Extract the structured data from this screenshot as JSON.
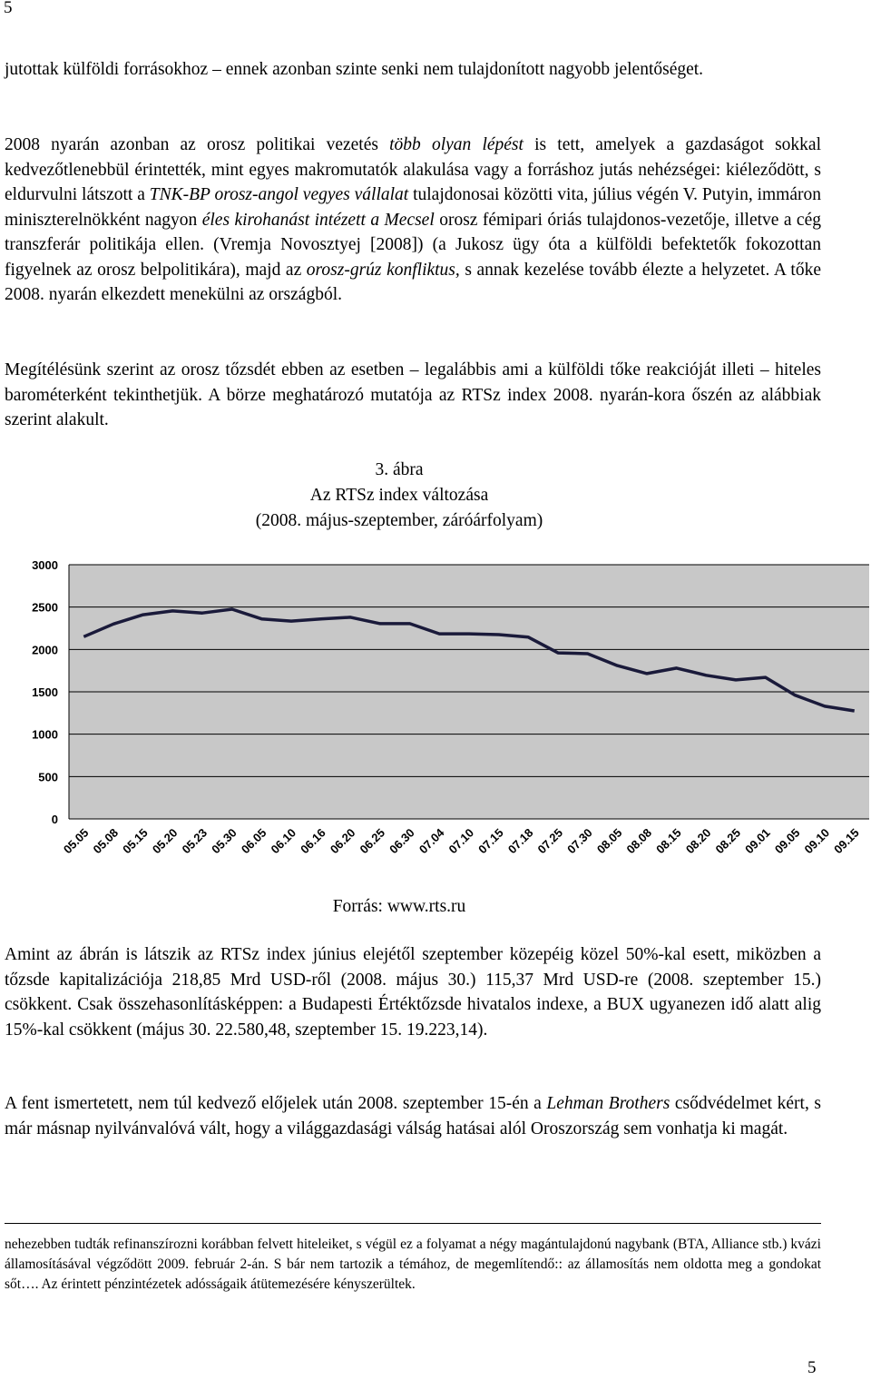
{
  "page_number_top": "5",
  "paragraphs": [
    {
      "runs": [
        "jutottak külföldi forrásokhoz – ennek azonban szinte senki nem tulajdonított nagyobb jelentőséget."
      ]
    },
    {
      "runs": [
        "2008 nyarán azonban az orosz politikai vezetés ",
        {
          "text": "több olyan lépést",
          "italic": true
        },
        " is tett, amelyek a gazdaságot sokkal kedvezőtlenebbül érintették, mint egyes makromutatók alakulása vagy a forráshoz jutás nehézségei: kiéleződött, s eldurvulni látszott a ",
        {
          "text": "TNK-BP orosz-angol vegyes vállalat",
          "italic": true
        },
        " tulajdonosai közötti vita, július végén V. Putyin, immáron miniszterelnökként nagyon ",
        {
          "text": "éles kirohanást intézett a Mecsel",
          "italic": true
        },
        " orosz fémipari óriás tulajdonos-vezetője, illetve a cég transzferár politikája ellen. (Vremja Novosztyej [2008]) (a Jukosz ügy óta a külföldi befektetők fokozottan figyelnek az orosz belpolitikára), majd az ",
        {
          "text": "orosz-grúz konfliktus,",
          "italic": true
        },
        " s annak kezelése tovább élezte a helyzetet. A tőke 2008. nyarán elkezdett menekülni az országból."
      ]
    },
    {
      "runs": [
        "Megítélésünk szerint az orosz tőzsdét ebben az esetben – legalábbis ami a külföldi tőke reakcióját illeti – hiteles barométerként tekinthetjük. A börze meghatározó mutatója az RTSz index 2008. nyarán-kora őszén az alábbiak szerint alakult."
      ]
    }
  ],
  "figure": {
    "number": "3. ábra",
    "caption": "Az RTSz index változása",
    "subcaption": "(2008. május-szeptember, záróárfolyam)",
    "source": "Forrás: www.rts.ru"
  },
  "chart_data": {
    "type": "line",
    "categories": [
      "05.05",
      "05.08",
      "05.15",
      "05.20",
      "05.23",
      "05.30",
      "06.05",
      "06.10",
      "06.16",
      "06.20",
      "06.25",
      "06.30",
      "07.04",
      "07.10",
      "07.15",
      "07.18",
      "07.25",
      "07.30",
      "08.05",
      "08.08",
      "08.15",
      "08.20",
      "08.25",
      "09.01",
      "09.05",
      "09.10",
      "09.15"
    ],
    "values": [
      2150,
      2300,
      2410,
      2455,
      2430,
      2475,
      2360,
      2335,
      2360,
      2380,
      2305,
      2305,
      2185,
      2185,
      2175,
      2145,
      1960,
      1950,
      1810,
      1715,
      1780,
      1695,
      1640,
      1670,
      1460,
      1330,
      1275
    ],
    "color": "#1a1a3a",
    "ylim": [
      0,
      3000
    ],
    "yticks": [
      0,
      500,
      1000,
      1500,
      2000,
      2500,
      3000
    ],
    "grid": true
  },
  "paragraphs_after": [
    {
      "runs": [
        "Amint az ábrán is látszik az RTSz index június elejétől szeptember közepéig közel 50%-kal esett, miközben a tőzsde kapitalizációja 218,85 Mrd USD-ről (2008. május 30.) 115,37 Mrd USD-re (2008. szeptember 15.) csökkent. Csak összehasonlításképpen: a Budapesti Értéktőzsde hivatalos indexe, a BUX ugyanezen idő alatt alig 15%-kal csökkent (május 30. 22.580,48, szeptember 15. 19.223,14)."
      ]
    },
    {
      "runs": [
        "A fent ismertetett, nem túl kedvező előjelek után 2008. szeptember 15-én a ",
        {
          "text": "Lehman Brothers",
          "italic": true
        },
        " csődvédelmet kért, s már másnap nyilvánvalóvá vált, hogy a világgazdasági válság hatásai alól Oroszország sem vonhatja ki magát."
      ]
    }
  ],
  "footnote": "nehezebben tudták refinanszírozni korábban felvett hiteleiket, s végül ez a folyamat a négy magántulajdonú nagybank (BTA, Alliance stb.) kvázi államosításával végződött 2009. február 2-án. S bár nem tartozik a témához, de megemlítendő:: az államosítás nem oldotta meg a gondokat sőt…. Az érintett pénzintézetek adósságaik átütemezésére kényszerültek.",
  "page_number_bottom": "5"
}
